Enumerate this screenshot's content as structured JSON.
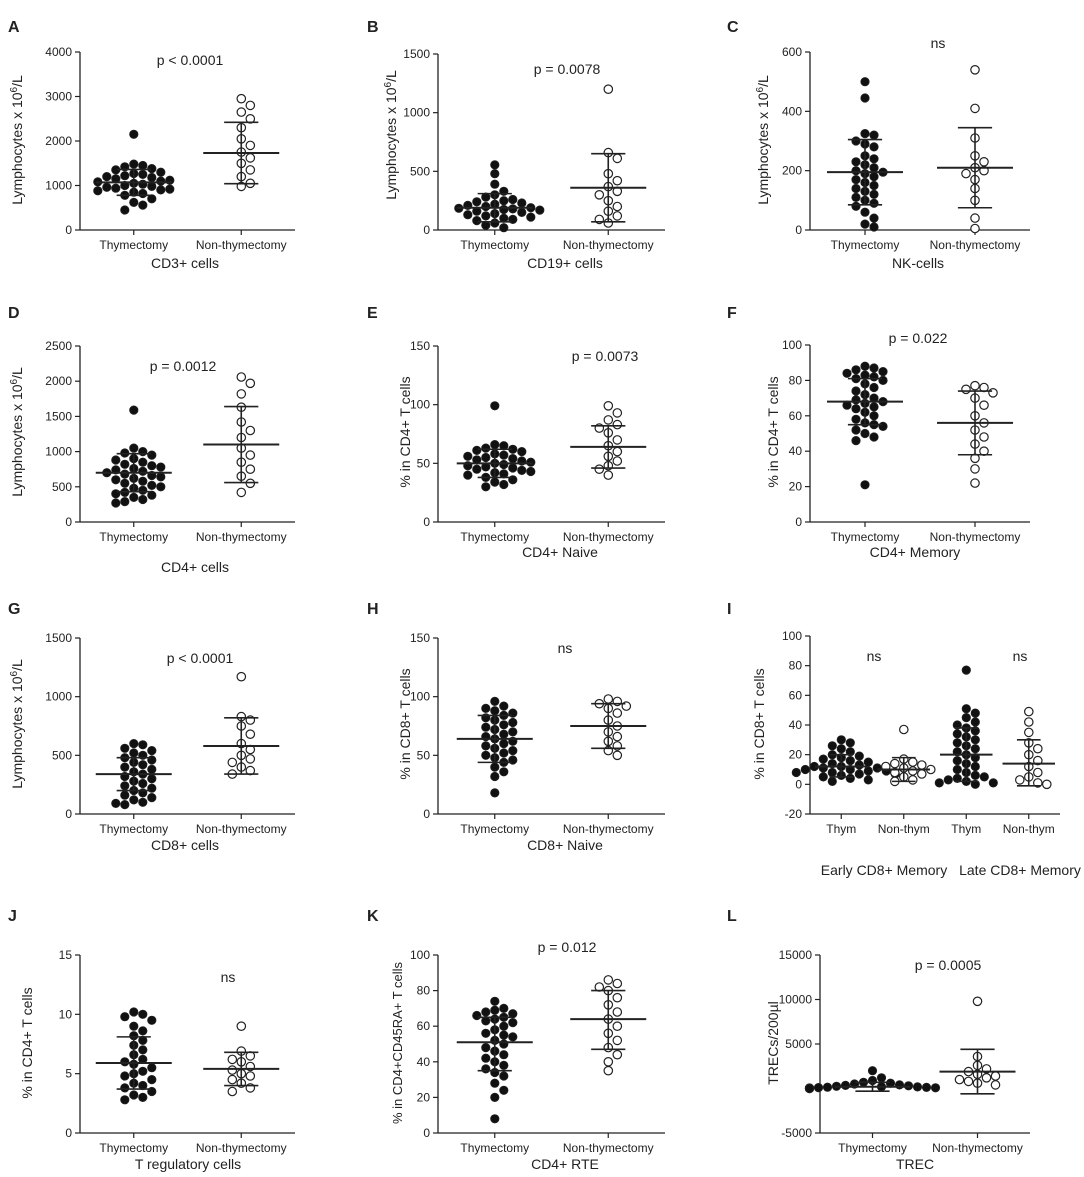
{
  "figure": {
    "colors": {
      "ink": "#222222",
      "filled": "#111111",
      "open_fill": "#ffffff",
      "sd_bar": "#222222"
    },
    "legend": {
      "filled_marker": "filled circle",
      "open_marker": "open circle"
    }
  },
  "chart_data": [
    {
      "panel": "A",
      "type": "scatter",
      "title": "p < 0.0001",
      "xlabel": "CD3+ cells",
      "ylabel": "Lymphocytes x 10^6/L",
      "ylim": [
        0,
        4000
      ],
      "yticks": [
        0,
        1000,
        2000,
        3000,
        4000
      ],
      "categories": [
        "Thymectomy",
        "Non-thymectomy"
      ],
      "series": [
        {
          "name": "Thymectomy",
          "marker": "filled",
          "mean": 1070,
          "sd_low": 780,
          "sd_high": 1360,
          "values": [
            2150,
            1480,
            1450,
            1420,
            1380,
            1350,
            1300,
            1270,
            1250,
            1220,
            1200,
            1180,
            1150,
            1120,
            1100,
            1080,
            1050,
            1030,
            1000,
            980,
            960,
            940,
            920,
            900,
            880,
            850,
            820,
            780,
            700,
            620,
            560,
            450
          ]
        },
        {
          "name": "Non-thymectomy",
          "marker": "open",
          "mean": 1730,
          "sd_low": 1040,
          "sd_high": 2420,
          "values": [
            2950,
            2800,
            2650,
            2500,
            2300,
            2050,
            1900,
            1750,
            1620,
            1500,
            1350,
            1200,
            1050,
            980
          ]
        }
      ]
    },
    {
      "panel": "B",
      "type": "scatter",
      "title": "p = 0.0078",
      "xlabel": "CD19+ cells",
      "ylabel": "Lymphocytes x 10^6/L",
      "ylim": [
        0,
        1500
      ],
      "yticks": [
        0,
        500,
        1000,
        1500
      ],
      "categories": [
        "Thymectomy",
        "Non-thymectomy"
      ],
      "series": [
        {
          "name": "Thymectomy",
          "marker": "filled",
          "mean": 190,
          "sd_low": 70,
          "sd_high": 310,
          "values": [
            555,
            480,
            390,
            330,
            300,
            280,
            260,
            250,
            240,
            230,
            220,
            210,
            200,
            190,
            185,
            180,
            175,
            170,
            160,
            150,
            140,
            130,
            120,
            110,
            100,
            90,
            80,
            60,
            40,
            20
          ]
        },
        {
          "name": "Non-thymectomy",
          "marker": "open",
          "mean": 360,
          "sd_low": 70,
          "sd_high": 650,
          "values": [
            1200,
            660,
            610,
            480,
            420,
            370,
            330,
            300,
            250,
            200,
            160,
            120,
            90,
            60
          ]
        }
      ]
    },
    {
      "panel": "C",
      "type": "scatter",
      "title": "ns",
      "xlabel": "NK-cells",
      "ylabel": "Lymphocytes x 10^6/L",
      "ylim": [
        0,
        600
      ],
      "yticks": [
        0,
        200,
        400,
        600
      ],
      "categories": [
        "Thymectomy",
        "Non-thymectomy"
      ],
      "series": [
        {
          "name": "Thymectomy",
          "marker": "filled",
          "mean": 195,
          "sd_low": 85,
          "sd_high": 305,
          "values": [
            500,
            445,
            325,
            320,
            300,
            290,
            280,
            250,
            240,
            230,
            220,
            210,
            200,
            195,
            190,
            180,
            170,
            160,
            150,
            140,
            130,
            120,
            110,
            100,
            90,
            80,
            60,
            40,
            20,
            10
          ]
        },
        {
          "name": "Non-thymectomy",
          "marker": "open",
          "mean": 210,
          "sd_low": 75,
          "sd_high": 345,
          "values": [
            540,
            410,
            310,
            250,
            230,
            210,
            200,
            190,
            170,
            140,
            100,
            40,
            5
          ]
        }
      ]
    },
    {
      "panel": "D",
      "type": "scatter",
      "title": "p = 0.0012",
      "xlabel": "CD4+ cells",
      "ylabel": "Lymphocytes x 10^6/L",
      "ylim": [
        0,
        2500
      ],
      "yticks": [
        0,
        500,
        1000,
        1500,
        2000,
        2500
      ],
      "categories": [
        "Thymectomy",
        "Non-thymectomy"
      ],
      "series": [
        {
          "name": "Thymectomy",
          "marker": "filled",
          "mean": 700,
          "sd_low": 430,
          "sd_high": 970,
          "values": [
            1590,
            1050,
            1000,
            980,
            950,
            900,
            880,
            850,
            820,
            800,
            780,
            760,
            740,
            720,
            700,
            680,
            660,
            640,
            620,
            600,
            580,
            550,
            520,
            500,
            480,
            450,
            420,
            400,
            380,
            350,
            320,
            290,
            270
          ]
        },
        {
          "name": "Non-thymectomy",
          "marker": "open",
          "mean": 1100,
          "sd_low": 560,
          "sd_high": 1640,
          "values": [
            2060,
            1970,
            1820,
            1630,
            1420,
            1300,
            1200,
            1050,
            950,
            850,
            750,
            650,
            550,
            420
          ]
        }
      ]
    },
    {
      "panel": "E",
      "type": "scatter",
      "title": "p = 0.0073",
      "xlabel": "CD4+ Naive",
      "ylabel": "% in CD4+ T cells",
      "ylim": [
        0,
        150
      ],
      "yticks": [
        0,
        50,
        100,
        150
      ],
      "categories": [
        "Thymectomy",
        "Non-thymectomy"
      ],
      "series": [
        {
          "name": "Thymectomy",
          "marker": "filled",
          "mean": 50,
          "sd_low": 38,
          "sd_high": 62,
          "values": [
            99,
            66,
            65,
            63,
            62,
            61,
            60,
            58,
            57,
            56,
            55,
            54,
            53,
            52,
            51,
            50,
            49,
            48,
            47,
            46,
            45,
            44,
            43,
            42,
            41,
            40,
            38,
            36,
            34,
            32,
            30
          ]
        },
        {
          "name": "Non-thymectomy",
          "marker": "open",
          "mean": 64,
          "sd_low": 46,
          "sd_high": 82,
          "values": [
            99,
            93,
            87,
            83,
            80,
            76,
            70,
            65,
            60,
            56,
            52,
            48,
            45,
            40
          ]
        }
      ]
    },
    {
      "panel": "F",
      "type": "scatter",
      "title": "p = 0.022",
      "xlabel": "CD4+ Memory",
      "ylabel": "% in CD4+ T cells",
      "ylim": [
        0,
        100
      ],
      "yticks": [
        0,
        20,
        40,
        60,
        80,
        100
      ],
      "categories": [
        "Thymectomy",
        "Non-thymectomy"
      ],
      "series": [
        {
          "name": "Thymectomy",
          "marker": "filled",
          "mean": 68,
          "sd_low": 55,
          "sd_high": 81,
          "values": [
            88,
            87,
            86,
            85,
            84,
            83,
            82,
            81,
            80,
            78,
            76,
            74,
            72,
            70,
            69,
            68,
            67,
            66,
            65,
            64,
            62,
            60,
            58,
            56,
            55,
            54,
            52,
            50,
            48,
            46,
            21
          ]
        },
        {
          "name": "Non-thymectomy",
          "marker": "open",
          "mean": 56,
          "sd_low": 38,
          "sd_high": 74,
          "values": [
            77,
            76,
            75,
            73,
            70,
            66,
            60,
            56,
            52,
            48,
            44,
            40,
            36,
            30,
            22
          ]
        }
      ]
    },
    {
      "panel": "G",
      "type": "scatter",
      "title": "p < 0.0001",
      "xlabel": "CD8+ cells",
      "ylabel": "Lymphocytes x 10^6/L",
      "ylim": [
        0,
        1500
      ],
      "yticks": [
        0,
        500,
        1000,
        1500
      ],
      "categories": [
        "Thymectomy",
        "Non-thymectomy"
      ],
      "series": [
        {
          "name": "Thymectomy",
          "marker": "filled",
          "mean": 340,
          "sd_low": 200,
          "sd_high": 480,
          "values": [
            600,
            590,
            560,
            540,
            520,
            500,
            480,
            460,
            440,
            420,
            400,
            380,
            360,
            340,
            320,
            300,
            280,
            260,
            240,
            220,
            200,
            180,
            160,
            140,
            120,
            100,
            90,
            80
          ]
        },
        {
          "name": "Non-thymectomy",
          "marker": "open",
          "mean": 580,
          "sd_low": 340,
          "sd_high": 820,
          "values": [
            1170,
            830,
            800,
            750,
            680,
            600,
            550,
            500,
            470,
            440,
            400,
            370,
            340
          ]
        }
      ]
    },
    {
      "panel": "H",
      "type": "scatter",
      "title": "ns",
      "xlabel": "CD8+ Naive",
      "ylabel": "% in CD8+ T cells",
      "ylim": [
        0,
        150
      ],
      "yticks": [
        0,
        50,
        100,
        150
      ],
      "categories": [
        "Thymectomy",
        "Non-thymectomy"
      ],
      "series": [
        {
          "name": "Thymectomy",
          "marker": "filled",
          "mean": 64,
          "sd_low": 44,
          "sd_high": 84,
          "values": [
            96,
            92,
            90,
            88,
            86,
            84,
            82,
            80,
            78,
            76,
            74,
            72,
            70,
            68,
            66,
            64,
            62,
            60,
            58,
            56,
            54,
            52,
            50,
            48,
            46,
            44,
            40,
            36,
            32,
            18
          ]
        },
        {
          "name": "Non-thymectomy",
          "marker": "open",
          "mean": 75,
          "sd_low": 56,
          "sd_high": 94,
          "values": [
            98,
            96,
            94,
            92,
            90,
            86,
            80,
            75,
            70,
            66,
            62,
            58,
            54,
            50
          ]
        }
      ]
    },
    {
      "panel": "I",
      "type": "scatter",
      "annotations": [
        "ns",
        "ns"
      ],
      "group_labels": [
        "Early CD8+  Memory",
        "Late CD8+  Memory"
      ],
      "ylabel": "% in CD8+ T cells",
      "ylim": [
        -20,
        100
      ],
      "yticks": [
        -20,
        0,
        20,
        40,
        60,
        80,
        100
      ],
      "categories": [
        "Thym",
        "Non-thym",
        "Thym",
        "Non-thym"
      ],
      "series": [
        {
          "name": "Thym (early)",
          "marker": "filled",
          "mean": 12,
          "sd_low": 5,
          "sd_high": 20,
          "values": [
            30,
            28,
            26,
            24,
            22,
            20,
            19,
            18,
            17,
            16,
            15,
            14,
            13,
            12,
            12,
            11,
            11,
            10,
            10,
            9,
            9,
            8,
            8,
            7,
            7,
            6,
            5,
            4,
            3,
            2
          ]
        },
        {
          "name": "Non-thym (early)",
          "marker": "open",
          "mean": 10,
          "sd_low": 2,
          "sd_high": 18,
          "values": [
            37,
            17,
            15,
            14,
            13,
            12,
            11,
            10,
            9,
            8,
            7,
            5,
            3,
            2
          ]
        },
        {
          "name": "Thym (late)",
          "marker": "filled",
          "mean": 20,
          "sd_low": 2,
          "sd_high": 38,
          "values": [
            77,
            51,
            48,
            45,
            42,
            40,
            38,
            36,
            34,
            32,
            30,
            28,
            26,
            24,
            22,
            20,
            18,
            16,
            14,
            12,
            10,
            8,
            6,
            5,
            4,
            3,
            2,
            1,
            1,
            0
          ]
        },
        {
          "name": "Non-thym (late)",
          "marker": "open",
          "mean": 14,
          "sd_low": -1,
          "sd_high": 30,
          "values": [
            49,
            42,
            35,
            28,
            24,
            20,
            16,
            12,
            8,
            5,
            3,
            1,
            0
          ]
        }
      ]
    },
    {
      "panel": "J",
      "type": "scatter",
      "title": "ns",
      "xlabel": "T regulatory cells",
      "ylabel": "% in CD4+ T cells",
      "ylim": [
        0,
        15
      ],
      "yticks": [
        0,
        5,
        10,
        15
      ],
      "categories": [
        "Thymectomy",
        "Non-thymectomy"
      ],
      "series": [
        {
          "name": "Thymectomy",
          "marker": "filled",
          "mean": 5.9,
          "sd_low": 3.7,
          "sd_high": 8.1,
          "values": [
            10.2,
            10.0,
            9.8,
            9.5,
            9.0,
            8.6,
            8.2,
            7.8,
            7.4,
            7.0,
            6.6,
            6.2,
            6.0,
            5.8,
            5.5,
            5.2,
            5.0,
            4.8,
            4.5,
            4.2,
            4.0,
            3.8,
            3.5,
            3.2,
            3.0,
            2.8
          ]
        },
        {
          "name": "Non-thymectomy",
          "marker": "open",
          "mean": 5.4,
          "sd_low": 4.0,
          "sd_high": 6.8,
          "values": [
            9.0,
            6.9,
            6.5,
            6.2,
            6.0,
            5.6,
            5.3,
            5.0,
            4.8,
            4.5,
            4.2,
            3.8,
            3.5
          ]
        }
      ]
    },
    {
      "panel": "K",
      "type": "scatter",
      "title": "p = 0.012",
      "xlabel": "CD4+ RTE",
      "ylabel": "% in CD4+CD45RA+ T cells",
      "ylim": [
        0,
        100
      ],
      "yticks": [
        0,
        20,
        40,
        60,
        80,
        100
      ],
      "categories": [
        "Thymectomy",
        "Non-thymectomy"
      ],
      "series": [
        {
          "name": "Thymectomy",
          "marker": "filled",
          "mean": 51,
          "sd_low": 35,
          "sd_high": 65,
          "values": [
            74,
            70,
            69,
            68,
            67,
            66,
            65,
            64,
            63,
            62,
            60,
            58,
            56,
            55,
            54,
            52,
            50,
            48,
            46,
            44,
            42,
            40,
            38,
            36,
            34,
            32,
            28,
            24,
            20,
            8
          ]
        },
        {
          "name": "Non-thymectomy",
          "marker": "open",
          "mean": 64,
          "sd_low": 47,
          "sd_high": 80,
          "values": [
            86,
            84,
            82,
            80,
            76,
            72,
            68,
            64,
            60,
            56,
            52,
            48,
            44,
            40,
            35
          ]
        }
      ]
    },
    {
      "panel": "L",
      "type": "scatter",
      "title": "p = 0.0005",
      "xlabel": "TREC",
      "ylabel": "TRECs/200µl",
      "ylim": [
        -5000,
        15000
      ],
      "yticks": [
        -5000,
        0,
        5000,
        10000,
        15000
      ],
      "categories": [
        "Thymectomy",
        "Non-thymectomy"
      ],
      "series": [
        {
          "name": "Thymectomy",
          "marker": "filled",
          "mean": 200,
          "sd_low": -300,
          "sd_high": 700,
          "values": [
            2000,
            1200,
            900,
            700,
            600,
            500,
            400,
            350,
            300,
            250,
            200,
            180,
            150,
            120,
            100,
            80,
            60,
            50,
            40,
            30,
            20,
            10,
            0,
            0,
            0
          ]
        },
        {
          "name": "Non-thymectomy",
          "marker": "open",
          "mean": 1900,
          "sd_low": -600,
          "sd_high": 4400,
          "values": [
            9800,
            3600,
            2600,
            2200,
            1900,
            1600,
            1400,
            1200,
            1000,
            800,
            600,
            400
          ]
        }
      ]
    }
  ]
}
